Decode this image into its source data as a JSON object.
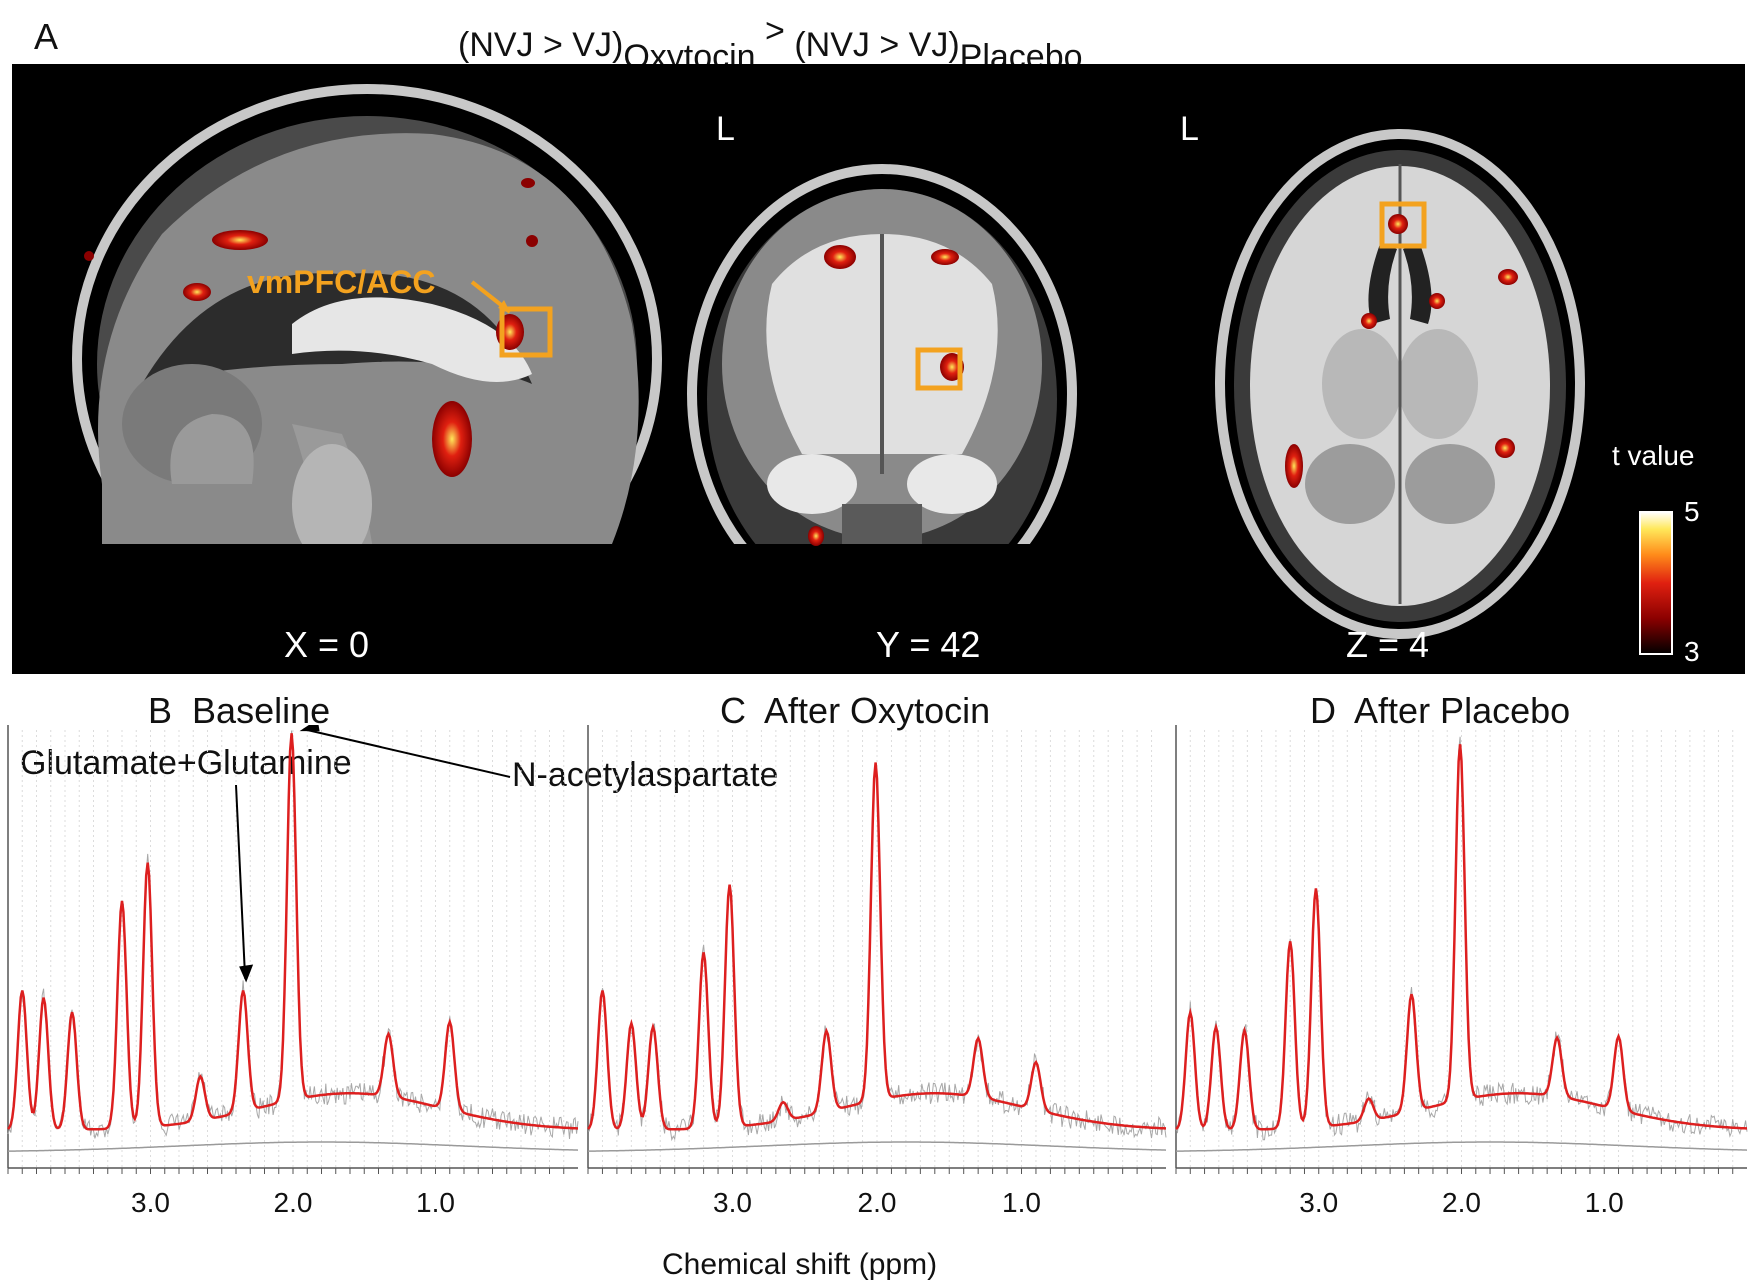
{
  "figure": {
    "panel_a": {
      "letter": "A",
      "contrast_title": {
        "part1": "(NVJ > VJ)",
        "sub1": "Oxytocin",
        "op": ">",
        "part2": "(NVJ > VJ)",
        "sub2": "Placebo"
      },
      "roi_label": "vmPFC/ACC",
      "orientation_left": "L",
      "slices": [
        {
          "view": "sagittal",
          "label": "X = 0"
        },
        {
          "view": "coronal",
          "label": "Y = 42"
        },
        {
          "view": "axial",
          "label": "Z = 4"
        }
      ],
      "colorbar": {
        "title": "t value",
        "max": "5",
        "min": "3",
        "colors": [
          "#000000",
          "#8b0000",
          "#e02010",
          "#ff8c1a",
          "#ffe85a",
          "#ffffff"
        ]
      },
      "roi_color": "#f3a21f"
    },
    "spectra_panels": [
      {
        "letter": "B",
        "title": "Baseline"
      },
      {
        "letter": "C",
        "title": "After Oxytocin"
      },
      {
        "letter": "D",
        "title": "After Placebo"
      }
    ],
    "annotations": {
      "glx": "Glutamate+Glutamine",
      "naa": "N-acetylaspartate"
    },
    "x_axis_label": "Chemical shift (ppm)",
    "x_tick_labels": [
      "3.0",
      "2.0",
      "1.0"
    ]
  },
  "chart_data": [
    {
      "type": "line",
      "panel": "B",
      "title": "Baseline",
      "xlabel": "Chemical shift (ppm)",
      "x_reversed": true,
      "xlim": [
        4.0,
        0.0
      ],
      "peaks_ppm": [
        {
          "ppm": 3.9,
          "height": 0.38
        },
        {
          "ppm": 3.75,
          "height": 0.36
        },
        {
          "ppm": 3.55,
          "height": 0.32
        },
        {
          "ppm": 3.2,
          "height": 0.62
        },
        {
          "ppm": 3.02,
          "height": 0.72
        },
        {
          "ppm": 2.65,
          "height": 0.12
        },
        {
          "ppm": 2.35,
          "height": 0.33
        },
        {
          "ppm": 2.01,
          "height": 1.0
        },
        {
          "ppm": 1.33,
          "height": 0.17
        },
        {
          "ppm": 0.9,
          "height": 0.24
        }
      ],
      "series": [
        {
          "values_desc": "fit (red) with raw spectrum (grey) and baseline (grey)"
        }
      ]
    },
    {
      "type": "line",
      "panel": "C",
      "title": "After Oxytocin",
      "xlabel": "Chemical shift (ppm)",
      "x_reversed": true,
      "xlim": [
        4.0,
        0.0
      ],
      "peaks_ppm": [
        {
          "ppm": 3.9,
          "height": 0.38
        },
        {
          "ppm": 3.7,
          "height": 0.29
        },
        {
          "ppm": 3.55,
          "height": 0.28
        },
        {
          "ppm": 3.2,
          "height": 0.48
        },
        {
          "ppm": 3.02,
          "height": 0.66
        },
        {
          "ppm": 2.65,
          "height": 0.05
        },
        {
          "ppm": 2.35,
          "height": 0.22
        },
        {
          "ppm": 2.01,
          "height": 0.92
        },
        {
          "ppm": 1.3,
          "height": 0.16
        },
        {
          "ppm": 0.9,
          "height": 0.13
        }
      ]
    },
    {
      "type": "line",
      "panel": "D",
      "title": "After Placebo",
      "xlabel": "Chemical shift (ppm)",
      "x_reversed": true,
      "xlim": [
        4.0,
        0.0
      ],
      "peaks_ppm": [
        {
          "ppm": 3.9,
          "height": 0.32
        },
        {
          "ppm": 3.72,
          "height": 0.28
        },
        {
          "ppm": 3.52,
          "height": 0.27
        },
        {
          "ppm": 3.2,
          "height": 0.51
        },
        {
          "ppm": 3.02,
          "height": 0.65
        },
        {
          "ppm": 2.65,
          "height": 0.06
        },
        {
          "ppm": 2.35,
          "height": 0.32
        },
        {
          "ppm": 2.01,
          "height": 0.97
        },
        {
          "ppm": 1.33,
          "height": 0.16
        },
        {
          "ppm": 0.9,
          "height": 0.2
        }
      ]
    }
  ]
}
